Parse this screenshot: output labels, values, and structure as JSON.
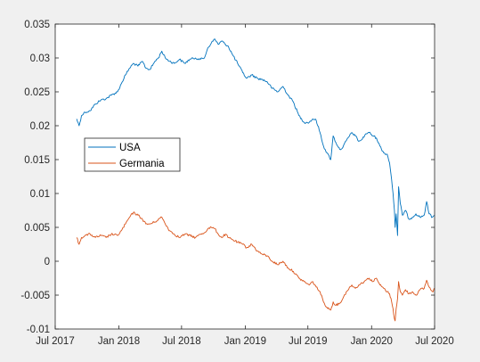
{
  "figure": {
    "background": "#f0f0f0",
    "axes_background": "#ffffff"
  },
  "chart_data": {
    "type": "line",
    "title": "",
    "xlabel": "",
    "ylabel": "",
    "xlim": [
      "2017-07-01",
      "2020-07-01"
    ],
    "ylim": [
      -0.01,
      0.035
    ],
    "x_ticks": [
      {
        "date": "2017-07-01",
        "label": "Jul 2017"
      },
      {
        "date": "2018-01-01",
        "label": "Jan 2018"
      },
      {
        "date": "2018-07-01",
        "label": "Jul 2018"
      },
      {
        "date": "2019-01-01",
        "label": "Jan 2019"
      },
      {
        "date": "2019-07-01",
        "label": "Jul 2019"
      },
      {
        "date": "2020-01-01",
        "label": "Jan 2020"
      },
      {
        "date": "2020-07-01",
        "label": "Jul 2020"
      }
    ],
    "y_ticks": [
      {
        "value": -0.01,
        "label": "-0.01"
      },
      {
        "value": -0.005,
        "label": "-0.005"
      },
      {
        "value": 0,
        "label": "0"
      },
      {
        "value": 0.005,
        "label": "0.005"
      },
      {
        "value": 0.01,
        "label": "0.01"
      },
      {
        "value": 0.015,
        "label": "0.015"
      },
      {
        "value": 0.02,
        "label": "0.02"
      },
      {
        "value": 0.025,
        "label": "0.025"
      },
      {
        "value": 0.03,
        "label": "0.03"
      },
      {
        "value": 0.035,
        "label": "0.035"
      }
    ],
    "grid": false,
    "legend": {
      "placement": "left"
    },
    "series": [
      {
        "name": "USA",
        "color": "#0072bd",
        "points": [
          [
            "2017-09-01",
            0.021
          ],
          [
            "2017-09-08",
            0.02
          ],
          [
            "2017-09-15",
            0.0215
          ],
          [
            "2017-09-25",
            0.022
          ],
          [
            "2017-10-10",
            0.0222
          ],
          [
            "2017-10-25",
            0.0232
          ],
          [
            "2017-11-10",
            0.0238
          ],
          [
            "2017-11-25",
            0.024
          ],
          [
            "2017-12-10",
            0.0245
          ],
          [
            "2017-12-28",
            0.025
          ],
          [
            "2018-01-08",
            0.0262
          ],
          [
            "2018-01-20",
            0.0275
          ],
          [
            "2018-02-01",
            0.0285
          ],
          [
            "2018-02-12",
            0.0292
          ],
          [
            "2018-02-25",
            0.0288
          ],
          [
            "2018-03-10",
            0.0295
          ],
          [
            "2018-03-20",
            0.0285
          ],
          [
            "2018-04-01",
            0.0283
          ],
          [
            "2018-04-15",
            0.0295
          ],
          [
            "2018-04-25",
            0.03
          ],
          [
            "2018-05-05",
            0.031
          ],
          [
            "2018-05-15",
            0.03
          ],
          [
            "2018-05-28",
            0.0295
          ],
          [
            "2018-06-10",
            0.0292
          ],
          [
            "2018-06-25",
            0.0298
          ],
          [
            "2018-07-10",
            0.0292
          ],
          [
            "2018-07-25",
            0.0298
          ],
          [
            "2018-08-10",
            0.03
          ],
          [
            "2018-08-25",
            0.0298
          ],
          [
            "2018-09-05",
            0.03
          ],
          [
            "2018-09-15",
            0.0315
          ],
          [
            "2018-09-25",
            0.0322
          ],
          [
            "2018-10-05",
            0.0328
          ],
          [
            "2018-10-15",
            0.032
          ],
          [
            "2018-10-25",
            0.0325
          ],
          [
            "2018-11-05",
            0.032
          ],
          [
            "2018-11-12",
            0.0318
          ],
          [
            "2018-11-25",
            0.0305
          ],
          [
            "2018-12-10",
            0.0292
          ],
          [
            "2018-12-25",
            0.0278
          ],
          [
            "2019-01-05",
            0.027
          ],
          [
            "2019-01-20",
            0.0275
          ],
          [
            "2019-02-05",
            0.027
          ],
          [
            "2019-02-20",
            0.0268
          ],
          [
            "2019-03-05",
            0.0265
          ],
          [
            "2019-03-20",
            0.0255
          ],
          [
            "2019-04-05",
            0.025
          ],
          [
            "2019-04-20",
            0.0258
          ],
          [
            "2019-05-05",
            0.0245
          ],
          [
            "2019-05-20",
            0.0235
          ],
          [
            "2019-06-05",
            0.0215
          ],
          [
            "2019-06-20",
            0.0205
          ],
          [
            "2019-07-05",
            0.0205
          ],
          [
            "2019-07-15",
            0.021
          ],
          [
            "2019-07-25",
            0.0208
          ],
          [
            "2019-08-05",
            0.019
          ],
          [
            "2019-08-15",
            0.017
          ],
          [
            "2019-08-25",
            0.016
          ],
          [
            "2019-09-05",
            0.015
          ],
          [
            "2019-09-12",
            0.0185
          ],
          [
            "2019-09-20",
            0.0175
          ],
          [
            "2019-10-01",
            0.0165
          ],
          [
            "2019-10-10",
            0.0168
          ],
          [
            "2019-10-20",
            0.0178
          ],
          [
            "2019-11-05",
            0.019
          ],
          [
            "2019-11-15",
            0.0185
          ],
          [
            "2019-11-25",
            0.0177
          ],
          [
            "2019-12-05",
            0.018
          ],
          [
            "2019-12-15",
            0.0188
          ],
          [
            "2019-12-25",
            0.019
          ],
          [
            "2020-01-05",
            0.0185
          ],
          [
            "2020-01-15",
            0.0182
          ],
          [
            "2020-01-25",
            0.017
          ],
          [
            "2020-02-05",
            0.016
          ],
          [
            "2020-02-15",
            0.0158
          ],
          [
            "2020-02-22",
            0.0145
          ],
          [
            "2020-02-28",
            0.012
          ],
          [
            "2020-03-03",
            0.01
          ],
          [
            "2020-03-07",
            0.0075
          ],
          [
            "2020-03-09",
            0.005
          ],
          [
            "2020-03-12",
            0.007
          ],
          [
            "2020-03-16",
            0.0038
          ],
          [
            "2020-03-19",
            0.011
          ],
          [
            "2020-03-24",
            0.0085
          ],
          [
            "2020-03-30",
            0.0068
          ],
          [
            "2020-04-08",
            0.0075
          ],
          [
            "2020-04-18",
            0.0062
          ],
          [
            "2020-04-28",
            0.0065
          ],
          [
            "2020-05-08",
            0.007
          ],
          [
            "2020-05-20",
            0.0065
          ],
          [
            "2020-06-01",
            0.0068
          ],
          [
            "2020-06-08",
            0.0088
          ],
          [
            "2020-06-15",
            0.007
          ],
          [
            "2020-06-25",
            0.0065
          ],
          [
            "2020-07-01",
            0.0068
          ]
        ]
      },
      {
        "name": "Germania",
        "color": "#d95319",
        "points": [
          [
            "2017-09-01",
            0.0035
          ],
          [
            "2017-09-08",
            0.0025
          ],
          [
            "2017-09-15",
            0.0035
          ],
          [
            "2017-09-25",
            0.0038
          ],
          [
            "2017-10-10",
            0.004
          ],
          [
            "2017-10-25",
            0.0035
          ],
          [
            "2017-11-10",
            0.0038
          ],
          [
            "2017-11-25",
            0.0035
          ],
          [
            "2017-12-10",
            0.004
          ],
          [
            "2017-12-28",
            0.0038
          ],
          [
            "2018-01-08",
            0.0045
          ],
          [
            "2018-01-20",
            0.0055
          ],
          [
            "2018-02-01",
            0.0065
          ],
          [
            "2018-02-12",
            0.0072
          ],
          [
            "2018-02-25",
            0.0068
          ],
          [
            "2018-03-10",
            0.0062
          ],
          [
            "2018-03-20",
            0.0055
          ],
          [
            "2018-04-01",
            0.0055
          ],
          [
            "2018-04-15",
            0.0058
          ],
          [
            "2018-04-25",
            0.0062
          ],
          [
            "2018-05-05",
            0.0065
          ],
          [
            "2018-05-15",
            0.0055
          ],
          [
            "2018-05-28",
            0.0045
          ],
          [
            "2018-06-10",
            0.004
          ],
          [
            "2018-06-25",
            0.0035
          ],
          [
            "2018-07-10",
            0.004
          ],
          [
            "2018-07-25",
            0.0038
          ],
          [
            "2018-08-10",
            0.0035
          ],
          [
            "2018-08-25",
            0.004
          ],
          [
            "2018-09-05",
            0.0042
          ],
          [
            "2018-09-15",
            0.0048
          ],
          [
            "2018-09-25",
            0.005
          ],
          [
            "2018-10-05",
            0.0048
          ],
          [
            "2018-10-15",
            0.004
          ],
          [
            "2018-10-25",
            0.0035
          ],
          [
            "2018-11-05",
            0.004
          ],
          [
            "2018-11-12",
            0.0035
          ],
          [
            "2018-11-25",
            0.0032
          ],
          [
            "2018-12-10",
            0.0028
          ],
          [
            "2018-12-25",
            0.0025
          ],
          [
            "2019-01-05",
            0.002
          ],
          [
            "2019-01-20",
            0.0025
          ],
          [
            "2019-02-05",
            0.0015
          ],
          [
            "2019-02-20",
            0.001
          ],
          [
            "2019-03-05",
            0.0008
          ],
          [
            "2019-03-20",
            0.0
          ],
          [
            "2019-04-05",
            -0.0005
          ],
          [
            "2019-04-20",
            0.0
          ],
          [
            "2019-05-05",
            -0.001
          ],
          [
            "2019-05-20",
            -0.0015
          ],
          [
            "2019-06-05",
            -0.0025
          ],
          [
            "2019-06-20",
            -0.003
          ],
          [
            "2019-07-05",
            -0.0035
          ],
          [
            "2019-07-15",
            -0.003
          ],
          [
            "2019-07-25",
            -0.0038
          ],
          [
            "2019-08-05",
            -0.0045
          ],
          [
            "2019-08-15",
            -0.006
          ],
          [
            "2019-08-25",
            -0.0068
          ],
          [
            "2019-09-05",
            -0.0072
          ],
          [
            "2019-09-12",
            -0.006
          ],
          [
            "2019-09-20",
            -0.0065
          ],
          [
            "2019-10-01",
            -0.0062
          ],
          [
            "2019-10-10",
            -0.0055
          ],
          [
            "2019-10-20",
            -0.0045
          ],
          [
            "2019-11-05",
            -0.0035
          ],
          [
            "2019-11-15",
            -0.004
          ],
          [
            "2019-11-25",
            -0.0035
          ],
          [
            "2019-12-05",
            -0.0032
          ],
          [
            "2019-12-15",
            -0.0028
          ],
          [
            "2019-12-25",
            -0.0025
          ],
          [
            "2020-01-05",
            -0.003
          ],
          [
            "2020-01-15",
            -0.0025
          ],
          [
            "2020-01-25",
            -0.0035
          ],
          [
            "2020-02-05",
            -0.004
          ],
          [
            "2020-02-15",
            -0.0045
          ],
          [
            "2020-02-22",
            -0.0048
          ],
          [
            "2020-02-28",
            -0.006
          ],
          [
            "2020-03-03",
            -0.007
          ],
          [
            "2020-03-07",
            -0.0085
          ],
          [
            "2020-03-09",
            -0.0088
          ],
          [
            "2020-03-12",
            -0.007
          ],
          [
            "2020-03-16",
            -0.0055
          ],
          [
            "2020-03-19",
            -0.003
          ],
          [
            "2020-03-24",
            -0.0045
          ],
          [
            "2020-03-30",
            -0.005
          ],
          [
            "2020-04-08",
            -0.0042
          ],
          [
            "2020-04-18",
            -0.0048
          ],
          [
            "2020-04-28",
            -0.0045
          ],
          [
            "2020-05-08",
            -0.005
          ],
          [
            "2020-05-20",
            -0.0042
          ],
          [
            "2020-06-01",
            -0.004
          ],
          [
            "2020-06-08",
            -0.0028
          ],
          [
            "2020-06-15",
            -0.0038
          ],
          [
            "2020-06-25",
            -0.0045
          ],
          [
            "2020-07-01",
            -0.004
          ]
        ]
      }
    ]
  }
}
